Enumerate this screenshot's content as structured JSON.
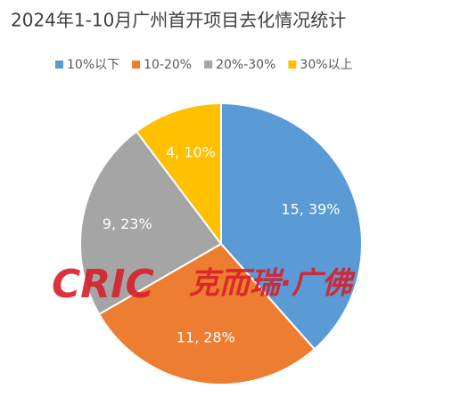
{
  "chart_data": {
    "type": "pie",
    "title": "2024年1-10月广州首开项目去化情况统计",
    "categories": [
      "10%以下",
      "10-20%",
      "20%-30%",
      "30%以上"
    ],
    "values": [
      15,
      11,
      9,
      4
    ],
    "value_labels": [
      "15, 39%",
      "11, 28%",
      "9, 23%",
      "4, 10%"
    ],
    "colors": [
      "#5b9bd5",
      "#ed7d31",
      "#a5a5a5",
      "#ffc000"
    ],
    "legend": "top",
    "watermark": {
      "logo": "CRIC",
      "text": "克而瑞·广佛"
    }
  }
}
